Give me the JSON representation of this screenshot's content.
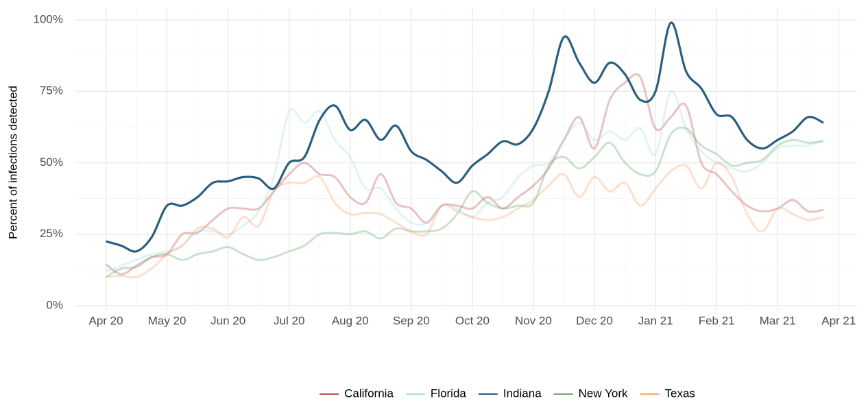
{
  "chart_data": {
    "type": "line",
    "y_label": "Percent of infections detected",
    "xlim": [
      -0.5,
      12.3
    ],
    "xticks": [
      {
        "value": 0,
        "label": "Apr 20"
      },
      {
        "value": 1,
        "label": "May 20"
      },
      {
        "value": 2,
        "label": "Jun 20"
      },
      {
        "value": 3,
        "label": "Jul 20"
      },
      {
        "value": 4,
        "label": "Aug 20"
      },
      {
        "value": 5,
        "label": "Sep 20"
      },
      {
        "value": 6,
        "label": "Oct 20"
      },
      {
        "value": 7,
        "label": "Nov 20"
      },
      {
        "value": 8,
        "label": "Dec 20"
      },
      {
        "value": 9,
        "label": "Jan 21"
      },
      {
        "value": 10,
        "label": "Feb 21"
      },
      {
        "value": 11,
        "label": "Mar 21"
      },
      {
        "value": 12,
        "label": "Apr 21"
      }
    ],
    "ylim": [
      0,
      100
    ],
    "yticks": [
      {
        "value": 0,
        "label": "0%"
      },
      {
        "value": 25,
        "label": "25%"
      },
      {
        "value": 50,
        "label": "50%"
      },
      {
        "value": 75,
        "label": "75%"
      },
      {
        "value": 100,
        "label": "100%"
      }
    ],
    "grid": true,
    "minor_grid": true,
    "legend": "bottom",
    "highlight": "Indiana",
    "x": [
      0,
      0.25,
      0.5,
      0.75,
      1,
      1.25,
      1.5,
      1.75,
      2,
      2.25,
      2.5,
      2.75,
      3,
      3.25,
      3.5,
      3.75,
      4,
      4.25,
      4.5,
      4.75,
      5,
      5.25,
      5.5,
      5.75,
      6,
      6.25,
      6.5,
      6.75,
      7,
      7.25,
      7.5,
      7.75,
      8,
      8.25,
      8.5,
      8.75,
      9,
      9.25,
      9.5,
      9.75,
      10,
      10.25,
      10.5,
      10.75,
      11,
      11.25,
      11.5,
      11.75
    ],
    "series": [
      {
        "name": "California",
        "color": "#c1504f",
        "values": [
          14.5,
          11,
          14,
          17,
          18,
          25,
          25.5,
          30,
          34,
          34,
          34,
          40,
          46,
          50,
          46,
          45,
          38,
          36,
          46,
          36,
          34,
          29,
          35,
          35,
          34,
          38,
          34,
          38,
          42,
          48,
          58,
          66,
          55,
          72,
          78,
          80,
          62,
          66,
          70,
          50,
          46,
          40,
          35,
          33,
          34,
          37,
          33,
          33.5
        ]
      },
      {
        "name": "Florida",
        "color": "#a8dce5",
        "values": [
          12,
          14,
          16,
          18,
          19,
          21,
          26,
          26,
          25,
          28,
          33,
          45,
          68,
          64,
          68,
          58,
          52,
          41,
          41,
          34,
          29,
          29,
          35,
          34,
          31,
          36,
          38,
          45,
          49,
          50,
          58,
          64,
          58,
          61,
          58,
          62,
          53,
          75,
          62,
          54,
          50,
          48,
          47,
          50,
          55,
          56,
          56,
          58
        ]
      },
      {
        "name": "Indiana",
        "color": "#2b5f7e",
        "values": [
          22.5,
          21,
          19,
          24,
          35,
          35,
          38,
          43,
          43.5,
          45,
          44.5,
          41,
          50,
          52,
          65,
          70,
          61.5,
          65,
          58,
          63,
          54,
          51,
          47,
          43,
          49,
          53,
          57.5,
          56.5,
          62,
          75,
          94,
          85,
          78,
          85,
          81,
          72,
          75,
          99,
          82,
          76,
          67,
          66,
          58,
          55,
          58,
          61,
          66,
          64
        ]
      },
      {
        "name": "New York",
        "color": "#6aaa6a",
        "values": [
          10,
          13,
          13.5,
          17,
          18,
          16,
          18,
          19,
          20.5,
          18,
          16,
          17,
          19,
          21,
          25,
          25.5,
          25,
          26,
          23.5,
          27,
          26,
          26,
          27,
          32,
          40,
          36,
          34,
          35,
          36,
          49,
          52,
          48,
          52,
          57,
          50,
          46,
          47,
          60,
          62,
          56,
          53,
          49,
          50,
          51,
          56,
          58,
          57,
          57.5
        ]
      },
      {
        "name": "Texas",
        "color": "#f5a76f",
        "values": [
          10,
          10.5,
          10,
          13,
          18,
          21,
          27,
          27,
          24,
          31,
          28,
          40,
          43,
          43,
          45,
          36,
          32,
          32.5,
          32,
          29,
          26,
          25,
          35,
          33,
          31,
          30,
          31,
          34,
          37,
          42,
          46,
          38,
          45,
          40,
          43,
          35,
          41,
          47,
          49,
          41,
          50,
          45,
          32,
          26,
          34,
          32,
          30,
          31
        ]
      }
    ]
  }
}
